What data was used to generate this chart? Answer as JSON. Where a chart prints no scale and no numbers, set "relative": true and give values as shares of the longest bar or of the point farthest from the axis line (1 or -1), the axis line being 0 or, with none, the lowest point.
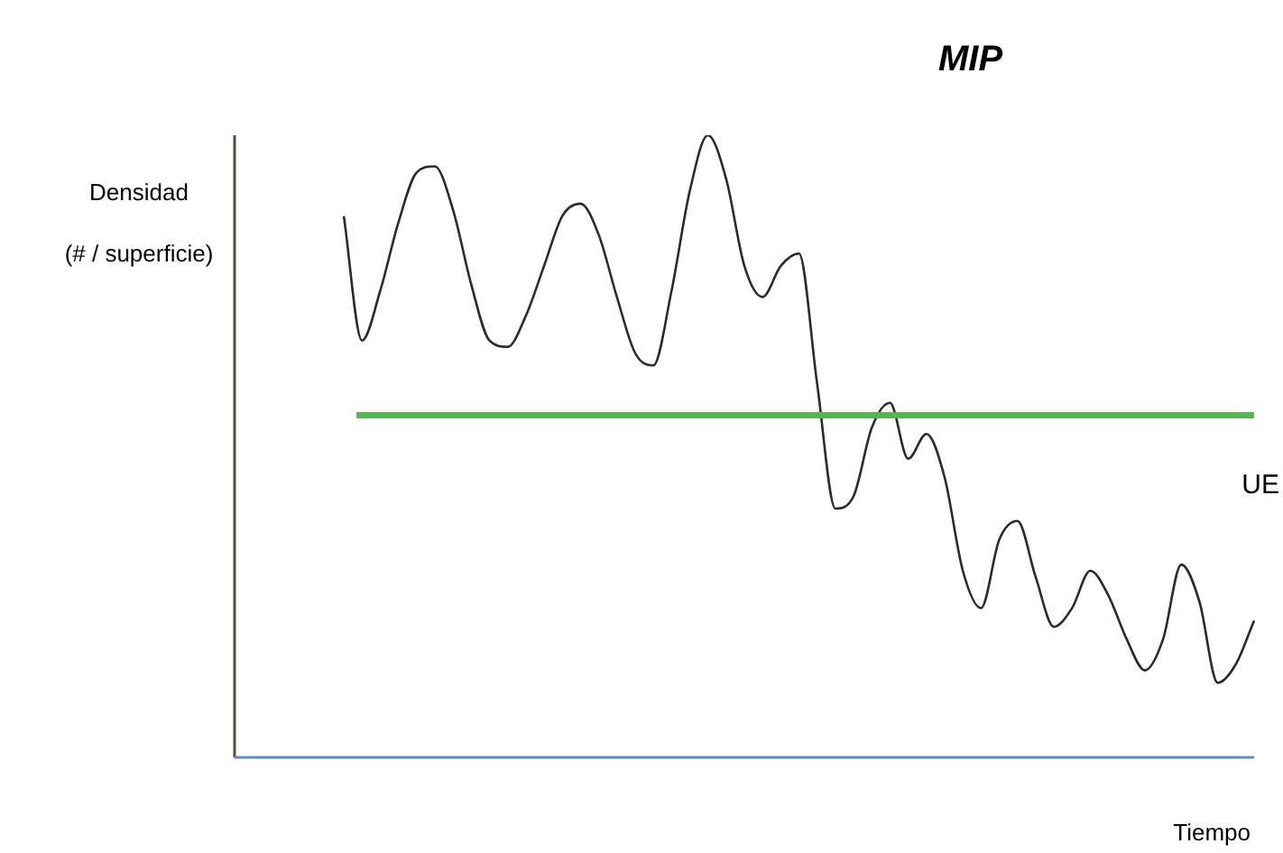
{
  "chart_data": {
    "type": "line",
    "title": "MIP",
    "ylabel": "Densidad\n(# / superficie)",
    "xlabel": "Tiempo",
    "relative": true,
    "legend": false,
    "marker": "none",
    "categories": [
      null,
      null,
      null,
      null,
      null,
      null,
      null,
      null,
      null,
      null,
      null,
      null,
      null,
      null,
      null,
      null,
      null,
      null,
      null,
      null,
      null,
      null,
      null,
      null,
      null,
      null,
      null,
      null,
      null,
      null,
      null,
      null,
      null,
      null,
      null,
      null,
      null,
      null,
      null,
      null,
      null,
      null,
      null,
      null,
      null,
      null,
      null,
      null,
      null,
      null,
      null,
      null,
      null,
      null,
      null,
      null,
      null
    ],
    "series": [
      {
        "color": "#2b2b2b",
        "values": [
          null,
          null,
          null,
          null,
          null,
          null,
          0.87,
          0.67,
          0.75,
          0.86,
          0.94,
          0.95,
          0.88,
          0.76,
          0.67,
          0.66,
          0.71,
          0.79,
          0.87,
          0.89,
          0.84,
          0.74,
          0.65,
          0.63,
          0.75,
          0.91,
          1,
          0.93,
          0.79,
          0.74,
          0.79,
          0.81,
          0.6,
          0.4,
          0.42,
          0.53,
          0.57,
          0.48,
          0.52,
          0.45,
          0.3,
          0.24,
          0.35,
          0.38,
          0.29,
          0.21,
          0.24,
          0.3,
          0.26,
          0.19,
          0.14,
          0.19,
          0.31,
          0.25,
          0.12,
          0.15,
          0.22
        ]
      }
    ],
    "ref_lines": [
      {
        "axis": "y",
        "value": 0.55,
        "label": "UE",
        "color": "#4dbb4a"
      }
    ]
  }
}
